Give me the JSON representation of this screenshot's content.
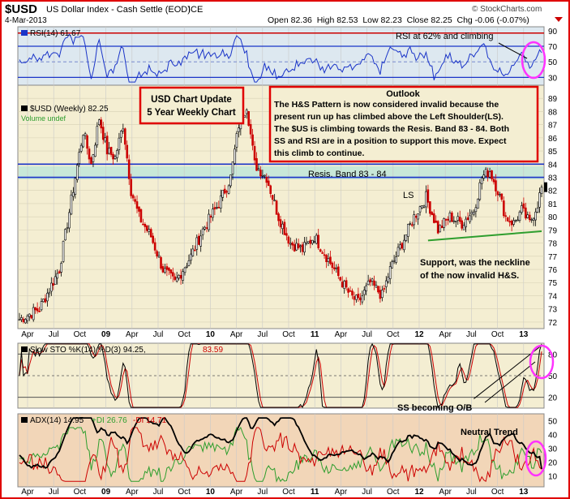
{
  "header": {
    "symbol": "$USD",
    "name": "US Dollar Index - Cash Settle (EOD)",
    "exchange": "ICE",
    "date": "4-Mar-2013",
    "ohlc": "Open 82.36  High 82.53  Low 82.23  Close 82.25  Chg -0.06 (-0.07%)",
    "brand": "© StockCharts.com"
  },
  "rsi_panel": {
    "label": "RSI(14) 61.67",
    "annotation": "RSI at 62% and climbing",
    "ticks": [
      "90",
      "70",
      "50",
      "30"
    ]
  },
  "price_panel": {
    "label": "$USD (Weekly) 82.25",
    "volume_label": "Volume undef",
    "ticks": [
      "89",
      "88",
      "87",
      "86",
      "85",
      "84",
      "83",
      "82",
      "81",
      "80",
      "79",
      "78",
      "77",
      "76",
      "75",
      "74",
      "73",
      "72"
    ],
    "update_box": [
      "USD Chart Update",
      "5 Year Weekly Chart"
    ],
    "outlook_title": "Outlook",
    "outlook_lines": [
      "The H&S Pattern is now considered invalid because the",
      "present run up has climbed above the Left Shoulder(LS).",
      "The $US is climbing towards the Resis. Band 83 - 84. Both",
      "SS and RSI are in a position to support this move. Expect",
      "this climb to continue."
    ],
    "resis_label": "Resis. Band 83 - 84",
    "ls_label": "LS",
    "support_lines": [
      "Support, was the neckline",
      "of the now invalid H&S."
    ]
  },
  "x_axis_labels": [
    "Apr",
    "Jul",
    "Oct",
    "09",
    "Apr",
    "Jul",
    "Oct",
    "10",
    "Apr",
    "Jul",
    "Oct",
    "11",
    "Apr",
    "Jul",
    "Oct",
    "12",
    "Apr",
    "Jul",
    "Oct",
    "13"
  ],
  "sto_panel": {
    "label_prefix": "Slow STO %K(14) %D(3) 94.25,",
    "label_d": "83.59",
    "annotation": "SS becoming O/B",
    "ticks": [
      "80",
      "50",
      "20"
    ]
  },
  "adx_panel": {
    "label_adx": "ADX(14) 14.95",
    "label_pdi": "+DI 26.76",
    "label_mdi": "-DI 14.71",
    "annotation": "Neutral Trend",
    "ticks": [
      "50",
      "40",
      "30",
      "20",
      "10"
    ]
  },
  "colors": {
    "frame": "#e00000",
    "candle_up": "#000000",
    "candle_down": "#cc0000",
    "rsi_line": "#1a34c8",
    "support_line": "#2e9e2e",
    "highlight_circle": "#ff33ff"
  },
  "chart_data": {
    "type": "line",
    "title": "$USD US Dollar Index - Cash Settle (EOD)",
    "x_range": [
      "2008-03",
      "2013-03"
    ],
    "price": {
      "name": "$USD (Weekly)",
      "ylim": [
        71.5,
        90
      ],
      "anchors": [
        [
          0,
          72.2
        ],
        [
          10,
          73
        ],
        [
          20,
          76
        ],
        [
          28,
          83
        ],
        [
          32,
          86.5
        ],
        [
          36,
          84
        ],
        [
          40,
          87.5
        ],
        [
          44,
          85
        ],
        [
          48,
          84.5
        ],
        [
          52,
          87
        ],
        [
          56,
          82
        ],
        [
          60,
          80
        ],
        [
          66,
          78.5
        ],
        [
          72,
          76
        ],
        [
          78,
          75
        ],
        [
          86,
          77
        ],
        [
          92,
          79
        ],
        [
          100,
          81
        ],
        [
          106,
          83
        ],
        [
          110,
          87
        ],
        [
          114,
          88.5
        ],
        [
          118,
          84
        ],
        [
          124,
          83
        ],
        [
          130,
          80
        ],
        [
          136,
          78
        ],
        [
          142,
          77.5
        ],
        [
          148,
          78.5
        ],
        [
          154,
          77
        ],
        [
          160,
          75.5
        ],
        [
          166,
          74
        ],
        [
          170,
          73.5
        ],
        [
          176,
          75
        ],
        [
          182,
          74
        ],
        [
          186,
          76
        ],
        [
          192,
          78
        ],
        [
          198,
          80
        ],
        [
          204,
          81.5
        ],
        [
          210,
          79
        ],
        [
          216,
          80
        ],
        [
          222,
          79.5
        ],
        [
          228,
          80.5
        ],
        [
          232,
          83
        ],
        [
          236,
          83.5
        ],
        [
          240,
          82
        ],
        [
          244,
          80
        ],
        [
          248,
          79.5
        ],
        [
          252,
          80.5
        ],
        [
          256,
          79.5
        ],
        [
          260,
          81
        ],
        [
          262,
          82.25
        ]
      ],
      "last": 82.25
    },
    "resistance_band": [
      83,
      84
    ],
    "support_line": {
      "from": [
        205,
        78.2
      ],
      "to": [
        262,
        78.9
      ]
    },
    "rsi": {
      "name": "RSI(14)",
      "ylim": [
        20,
        95
      ],
      "levels": [
        30,
        50,
        70
      ],
      "last": 61.67
    },
    "slow_sto": {
      "name": "Slow STO %K(14) %D(3)",
      "ylim": [
        5,
        95
      ],
      "levels": [
        20,
        50,
        80
      ],
      "k_last": 94.25,
      "d_last": 83.59
    },
    "adx": {
      "name": "ADX(14)",
      "ylim": [
        2,
        55
      ],
      "adx_last": 14.95,
      "plus_di_last": 26.76,
      "minus_di_last": 14.71
    }
  }
}
